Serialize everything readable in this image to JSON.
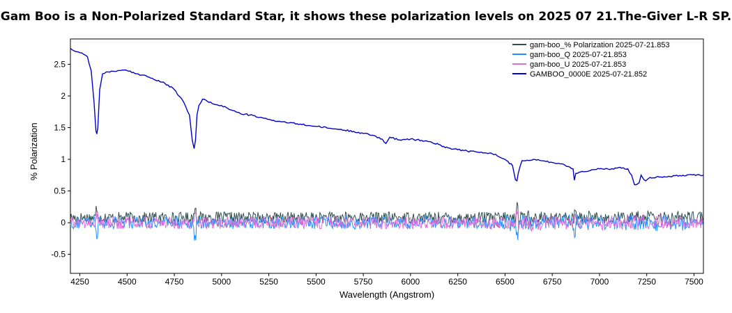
{
  "chart_data": {
    "type": "line",
    "title": "Gam Boo is a Non-Polarized Standard Star, it shows these polarization levels on 2025 07 21.The-Giver L-R  SP.",
    "xlabel": "Wavelength (Angstrom)",
    "ylabel": "% Polarization",
    "xlim": [
      4200,
      7550
    ],
    "ylim": [
      -0.8,
      2.9
    ],
    "x_ticks": [
      4250,
      4500,
      4750,
      5000,
      5250,
      5500,
      5750,
      6000,
      6250,
      6500,
      6750,
      7000,
      7250,
      7500
    ],
    "y_ticks": [
      -0.5,
      0,
      0.5,
      1,
      1.5,
      2,
      2.5
    ],
    "grid": false,
    "legend_position": "top-right",
    "series": [
      {
        "name": "gam-boo_% Polarization  2025-07-21.853",
        "color": "#2f4f4f",
        "kind": "noise",
        "baseline": 0.08,
        "amplitude": 0.09
      },
      {
        "name": "gam-boo_Q  2025-07-21.853",
        "color": "#1e90ff",
        "kind": "noise",
        "baseline": 0.0,
        "amplitude": 0.1
      },
      {
        "name": "gam-boo_U  2025-07-21.853",
        "color": "#da70d6",
        "kind": "noise",
        "baseline": 0.0,
        "amplitude": 0.1
      },
      {
        "name": "GAMBOO_0000E  2025-07-21.852",
        "color": "#0000cd",
        "kind": "spectrum",
        "x": [
          4200,
          4230,
          4260,
          4290,
          4310,
          4325,
          4335,
          4340,
          4345,
          4355,
          4370,
          4400,
          4450,
          4500,
          4550,
          4600,
          4650,
          4700,
          4750,
          4800,
          4830,
          4845,
          4855,
          4862,
          4870,
          4880,
          4900,
          4950,
          5000,
          5050,
          5100,
          5150,
          5200,
          5250,
          5300,
          5400,
          5500,
          5600,
          5700,
          5800,
          5850,
          5870,
          5880,
          5890,
          5900,
          5950,
          6000,
          6100,
          6200,
          6300,
          6400,
          6450,
          6500,
          6540,
          6555,
          6563,
          6570,
          6590,
          6650,
          6750,
          6800,
          6860,
          6867,
          6875,
          6900,
          7000,
          7050,
          7100,
          7150,
          7170,
          7185,
          7195,
          7210,
          7220,
          7235,
          7245,
          7260,
          7300,
          7400,
          7500,
          7550
        ],
        "y": [
          2.75,
          2.7,
          2.68,
          2.62,
          2.4,
          1.9,
          1.45,
          1.4,
          1.5,
          2.1,
          2.35,
          2.38,
          2.4,
          2.4,
          2.35,
          2.32,
          2.25,
          2.2,
          2.1,
          1.9,
          1.7,
          1.3,
          1.17,
          1.3,
          1.7,
          1.85,
          1.95,
          1.88,
          1.85,
          1.78,
          1.72,
          1.7,
          1.66,
          1.63,
          1.6,
          1.56,
          1.52,
          1.48,
          1.44,
          1.38,
          1.32,
          1.25,
          1.3,
          1.35,
          1.34,
          1.3,
          1.32,
          1.28,
          1.18,
          1.13,
          1.1,
          1.08,
          1.0,
          0.9,
          0.68,
          0.66,
          0.78,
          0.98,
          1.0,
          0.95,
          0.93,
          0.85,
          0.67,
          0.78,
          0.8,
          0.85,
          0.84,
          0.87,
          0.85,
          0.75,
          0.6,
          0.6,
          0.63,
          0.75,
          0.68,
          0.66,
          0.7,
          0.72,
          0.74,
          0.76,
          0.75
        ]
      }
    ]
  }
}
